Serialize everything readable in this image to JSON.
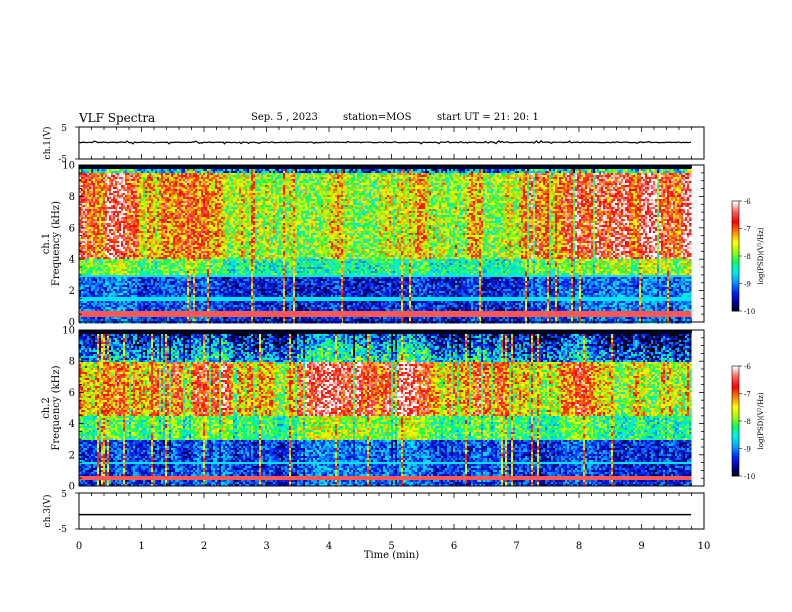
{
  "header": {
    "title": "VLF Spectra",
    "date": "Sep. 5 , 2023",
    "station": "station=MOS",
    "start_ut": "start UT =  21: 20: 1"
  },
  "chart_data": {
    "type": "heatmap",
    "x_axis": {
      "label": "Time (min)",
      "range": [
        0,
        10
      ],
      "ticks": [
        0,
        1,
        2,
        3,
        4,
        5,
        6,
        7,
        8,
        9,
        10
      ],
      "tick_labels": [
        "0",
        "1",
        "2",
        "3",
        "4",
        "5",
        "6",
        "7",
        "8",
        "9",
        "10"
      ]
    },
    "panels": [
      {
        "id": "ch1-waveform",
        "type": "line",
        "ylabel": "ch.1(V)",
        "ylim": [
          -5,
          5
        ],
        "tick_labels": [
          "-5",
          "5"
        ],
        "level": 0.2
      },
      {
        "id": "ch1-spectrogram",
        "type": "heatmap",
        "ylabel_top": "ch.1",
        "ylabel": "Frequency (kHz)",
        "ylim": [
          0,
          10
        ],
        "tick_values": [
          0,
          2,
          4,
          6,
          8,
          10
        ],
        "tick_labels": [
          "0",
          "2",
          "4",
          "6",
          "8",
          "10"
        ],
        "dominant_band_khz": [
          4,
          9.5
        ],
        "data_end_min": 9.8,
        "colorbar": {
          "label": "log(PSD)(V²/Hz)",
          "range": [
            -10,
            -6
          ],
          "tick_labels": [
            "-6",
            "-7",
            "-8",
            "-9",
            "-10"
          ]
        }
      },
      {
        "id": "ch2-spectrogram",
        "type": "heatmap",
        "ylabel_top": "ch.2",
        "ylabel": "Frequency (kHz)",
        "ylim": [
          0,
          10
        ],
        "tick_values": [
          0,
          2,
          4,
          6,
          8,
          10
        ],
        "tick_labels": [
          "0",
          "2",
          "4",
          "6",
          "8",
          "10"
        ],
        "dominant_band_khz": [
          4.5,
          8
        ],
        "data_end_min": 9.8,
        "colorbar": {
          "label": "log(PSD)(V²/Hz)",
          "range": [
            -10,
            -6
          ],
          "tick_labels": [
            "-6",
            "-7",
            "-8",
            "-9",
            "-10"
          ]
        }
      },
      {
        "id": "ch3-waveform",
        "type": "line",
        "ylabel": "ch.3(V)",
        "ylim": [
          -5,
          5
        ],
        "tick_labels": [
          "-5",
          "5"
        ],
        "level": -1.0
      }
    ],
    "colors": {
      "scale": [
        "#000000",
        "#0000a0",
        "#0028ff",
        "#00a0ff",
        "#00f0f0",
        "#00ff60",
        "#a0ff00",
        "#ffff00",
        "#ff8000",
        "#ff0000",
        "#ff6060",
        "#ffffff"
      ]
    }
  }
}
